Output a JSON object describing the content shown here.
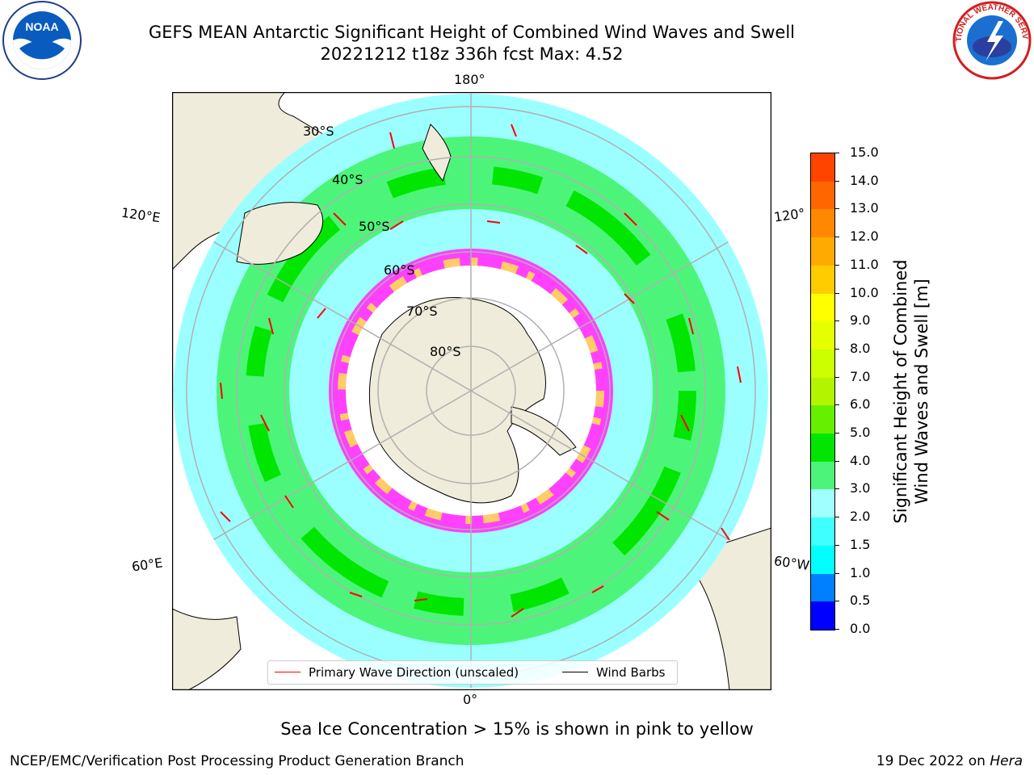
{
  "header": {
    "title_line1": "GEFS MEAN Antarctic Significant Height of Combined Wind Waves and Swell",
    "title_line2": "20221212 t18z 336h fcst   Max: 4.52"
  },
  "logos": {
    "left": "NOAA",
    "right": "NATIONAL WEATHER SERVICE"
  },
  "map": {
    "projection": "south-polar-stereographic",
    "lon_labels": {
      "top": "180°",
      "upper_left": "120°E",
      "upper_right": "120°",
      "lower_left": "60°E",
      "lower_right": "60°W",
      "bottom": "0°"
    },
    "lat_labels": [
      "30°S",
      "40°S",
      "50°S",
      "60°S",
      "70°S",
      "80°S"
    ],
    "colors": {
      "land": "#efecdb",
      "ocean_low": "#9cffff",
      "band_3_4": "#4cf57a",
      "band_4_5": "#00e600",
      "ice_pink": "#ff40ff",
      "ice_yellow": "#ffcc66",
      "arrow": "#ff0000"
    }
  },
  "legend": {
    "primary_wave": "Primary Wave Direction (unscaled)",
    "wind_barbs": "Wind Barbs"
  },
  "colorbar": {
    "title_line1": "Significant Height of Combined",
    "title_line2": "Wind Waves and Swell [m]",
    "ticks": [
      "15.0",
      "14.0",
      "13.0",
      "12.0",
      "11.0",
      "10.0",
      "9.0",
      "8.0",
      "7.0",
      "6.0",
      "5.0",
      "4.0",
      "3.0",
      "2.0",
      "1.5",
      "1.0",
      "0.5",
      "0.0"
    ],
    "colors_bottom_to_top": [
      "#0000ff",
      "#0080ff",
      "#00ffff",
      "#40ffff",
      "#a0ffff",
      "#4cf57a",
      "#00e600",
      "#66f000",
      "#b3f500",
      "#ccff00",
      "#e6ff00",
      "#ffff00",
      "#ffcc00",
      "#ffaa00",
      "#ff8800",
      "#ff6600",
      "#ff4400"
    ]
  },
  "notes": {
    "ice": "Sea Ice Concentration > 15% is shown in pink to yellow"
  },
  "footer": {
    "left": "NCEP/EMC/Verification Post Processing Product Generation Branch",
    "right_prefix": "19 Dec 2022 on ",
    "right_host": "Hera"
  }
}
